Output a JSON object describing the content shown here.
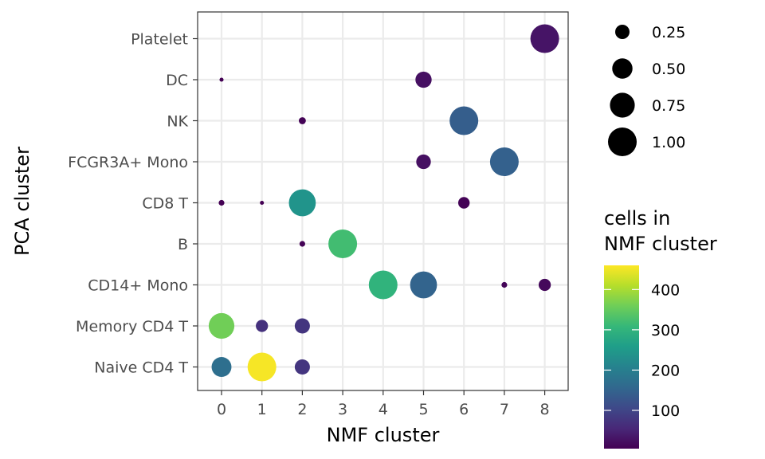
{
  "chart_data": {
    "type": "scatter",
    "xlabel": "NMF cluster",
    "ylabel": "PCA cluster",
    "x_categories": [
      "0",
      "1",
      "2",
      "3",
      "4",
      "5",
      "6",
      "7",
      "8"
    ],
    "y_categories": [
      "Naive CD4 T",
      "Memory CD4 T",
      "CD14+ Mono",
      "B",
      "CD8 T",
      "FCGR3A+ Mono",
      "NK",
      "DC",
      "Platelet"
    ],
    "grid": true,
    "points": [
      {
        "x": "8",
        "y": "Platelet",
        "size": 1.0,
        "count": 30
      },
      {
        "x": "0",
        "y": "DC",
        "size": 0.02,
        "count": 5
      },
      {
        "x": "5",
        "y": "DC",
        "size": 0.32,
        "count": 25
      },
      {
        "x": "2",
        "y": "NK",
        "size": 0.06,
        "count": 8
      },
      {
        "x": "6",
        "y": "NK",
        "size": 1.0,
        "count": 140
      },
      {
        "x": "5",
        "y": "FCGR3A+ Mono",
        "size": 0.26,
        "count": 25
      },
      {
        "x": "7",
        "y": "FCGR3A+ Mono",
        "size": 1.0,
        "count": 145
      },
      {
        "x": "0",
        "y": "CD8 T",
        "size": 0.04,
        "count": 5
      },
      {
        "x": "1",
        "y": "CD8 T",
        "size": 0.02,
        "count": 5
      },
      {
        "x": "2",
        "y": "CD8 T",
        "size": 0.88,
        "count": 240
      },
      {
        "x": "6",
        "y": "CD8 T",
        "size": 0.16,
        "count": 8
      },
      {
        "x": "2",
        "y": "B",
        "size": 0.04,
        "count": 8
      },
      {
        "x": "3",
        "y": "B",
        "size": 1.0,
        "count": 320
      },
      {
        "x": "4",
        "y": "CD14+ Mono",
        "size": 1.0,
        "count": 300
      },
      {
        "x": "5",
        "y": "CD14+ Mono",
        "size": 0.88,
        "count": 150
      },
      {
        "x": "7",
        "y": "CD14+ Mono",
        "size": 0.04,
        "count": 10
      },
      {
        "x": "8",
        "y": "CD14+ Mono",
        "size": 0.18,
        "count": 15
      },
      {
        "x": "0",
        "y": "Memory CD4 T",
        "size": 0.8,
        "count": 360
      },
      {
        "x": "1",
        "y": "Memory CD4 T",
        "size": 0.18,
        "count": 70
      },
      {
        "x": "2",
        "y": "Memory CD4 T",
        "size": 0.28,
        "count": 75
      },
      {
        "x": "0",
        "y": "Naive CD4 T",
        "size": 0.48,
        "count": 170
      },
      {
        "x": "1",
        "y": "Naive CD4 T",
        "size": 1.0,
        "count": 455
      },
      {
        "x": "2",
        "y": "Naive CD4 T",
        "size": 0.28,
        "count": 75
      }
    ],
    "size_legend": {
      "entries": [
        "0.25",
        "0.50",
        "0.75",
        "1.00"
      ],
      "values": [
        0.25,
        0.5,
        0.75,
        1.0
      ]
    },
    "color_legend": {
      "title_lines": [
        "cells in",
        "NMF cluster"
      ],
      "ticks": [
        "100",
        "200",
        "300",
        "400"
      ],
      "tick_values": [
        100,
        200,
        300,
        400
      ],
      "range": [
        5,
        460
      ],
      "colormap": "viridis"
    }
  }
}
